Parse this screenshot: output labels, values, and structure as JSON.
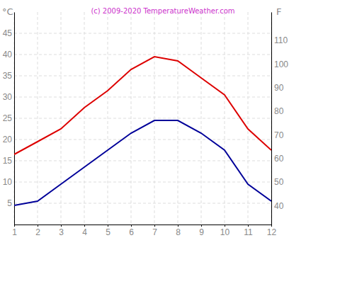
{
  "chart_data": {
    "type": "line",
    "title": "(c) 2009-2020 TemperatureWeather.com",
    "y_label": "°C",
    "y2_label": "F",
    "x": [
      1,
      2,
      3,
      4,
      5,
      6,
      7,
      8,
      9,
      10,
      11,
      12
    ],
    "xlim": [
      1,
      12
    ],
    "xticks": [
      1,
      2,
      3,
      4,
      5,
      6,
      7,
      8,
      9,
      10,
      11,
      12
    ],
    "ylim": [
      0,
      50
    ],
    "yticks": [
      5,
      10,
      15,
      20,
      25,
      30,
      35,
      40,
      45
    ],
    "y2lim": [
      32,
      122
    ],
    "y2ticks": [
      40,
      50,
      60,
      70,
      80,
      90,
      100,
      110
    ],
    "grid": true,
    "series": [
      {
        "color": "#dd0000",
        "values": [
          16.5,
          19.5,
          22.5,
          27.5,
          31.5,
          36.5,
          39.5,
          38.5,
          34.5,
          30.5,
          22.5,
          17.5
        ]
      },
      {
        "color": "#000099",
        "values": [
          4.5,
          5.5,
          9.5,
          13.5,
          17.5,
          21.5,
          24.5,
          24.5,
          21.5,
          17.5,
          9.5,
          5.5
        ]
      }
    ]
  }
}
